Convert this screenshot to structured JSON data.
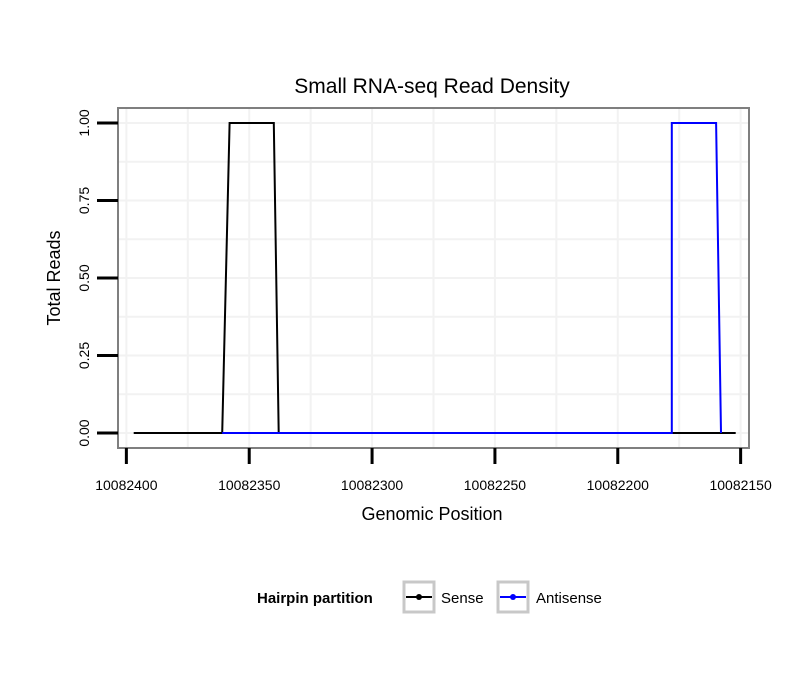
{
  "chart_data": {
    "type": "line",
    "title": "Small RNA-seq Read Density",
    "xlabel": "Genomic Position",
    "ylabel": "Total Reads",
    "x_reversed": true,
    "xlim": [
      10082403,
      10082147
    ],
    "ylim": [
      -0.045,
      1.045
    ],
    "x_ticks": [
      10082400,
      10082350,
      10082300,
      10082250,
      10082200,
      10082150
    ],
    "x_tick_labels": [
      "10082400",
      "10082350",
      "10082300",
      "10082250",
      "10082200",
      "10082150"
    ],
    "y_ticks": [
      0,
      0.25,
      0.5,
      0.75,
      1
    ],
    "y_tick_labels": [
      "0.00",
      "0.25",
      "0.50",
      "0.75",
      "1.00"
    ],
    "grid": true,
    "series": [
      {
        "name": "Sense",
        "color": "#000000",
        "x": [
          10082397,
          10082361,
          10082361,
          10082358,
          10082358,
          10082340,
          10082340,
          10082338,
          10082338,
          10082152
        ],
        "y": [
          0,
          0,
          0,
          1,
          1,
          1,
          1,
          0,
          0,
          0
        ]
      },
      {
        "name": "Antisense",
        "color": "#0000ff",
        "x": [
          10082361,
          10082340,
          10082180,
          10082178,
          10082178,
          10082160,
          10082160,
          10082158
        ],
        "y": [
          0,
          0,
          0,
          0,
          1,
          1,
          1,
          0
        ]
      }
    ]
  },
  "legend": {
    "title": "Hairpin partition",
    "position": "bottom",
    "items": [
      {
        "label": "Sense",
        "color": "#000000"
      },
      {
        "label": "Antisense",
        "color": "#0000ff"
      }
    ]
  }
}
